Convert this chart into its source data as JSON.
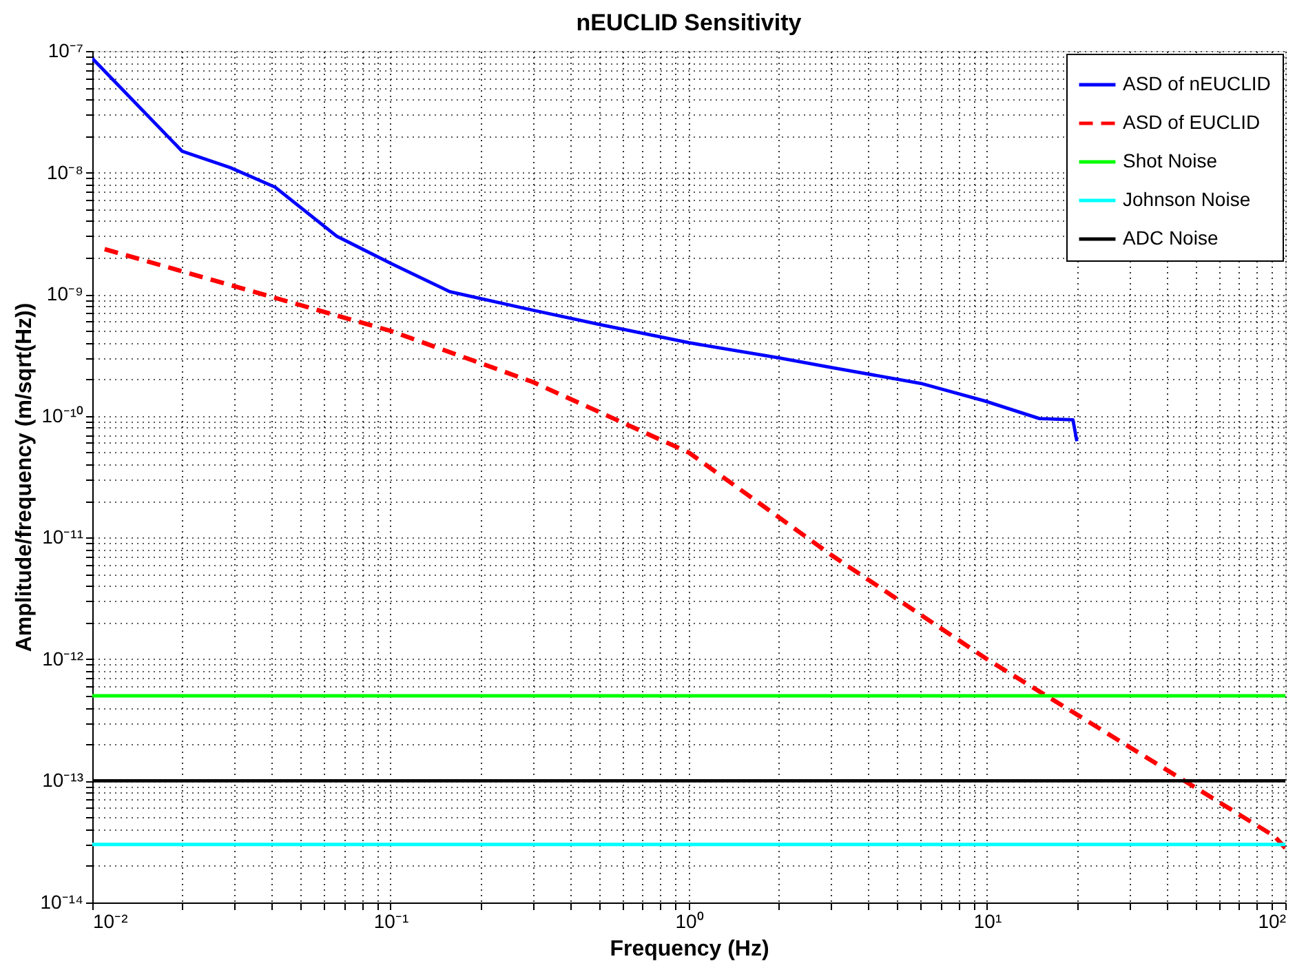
{
  "chart_data": {
    "type": "line",
    "title": "nEUCLID Sensitivity",
    "xlabel": "Frequency (Hz)",
    "ylabel": "Amplitude/frequency (m/sqrt(Hz))",
    "log": "xy",
    "grid": true,
    "legend": "top right",
    "xlim": [
      0.01,
      100
    ],
    "ylim": [
      1e-14,
      1e-07
    ],
    "xticks": [
      {
        "value": 0.01,
        "label": "10⁻²"
      },
      {
        "value": 0.02,
        "label": null
      },
      {
        "value": 0.03,
        "label": null
      },
      {
        "value": 0.04,
        "label": null
      },
      {
        "value": 0.05,
        "label": null
      },
      {
        "value": 0.06,
        "label": null
      },
      {
        "value": 0.07,
        "label": null
      },
      {
        "value": 0.08,
        "label": null
      },
      {
        "value": 0.09,
        "label": null
      },
      {
        "value": 0.1,
        "label": "10⁻¹"
      },
      {
        "value": 0.2,
        "label": null
      },
      {
        "value": 0.3,
        "label": null
      },
      {
        "value": 0.4,
        "label": null
      },
      {
        "value": 0.5,
        "label": null
      },
      {
        "value": 0.6,
        "label": null
      },
      {
        "value": 0.7,
        "label": null
      },
      {
        "value": 0.8,
        "label": null
      },
      {
        "value": 0.9,
        "label": null
      },
      {
        "value": 1,
        "label": "10⁰"
      },
      {
        "value": 2,
        "label": null
      },
      {
        "value": 3,
        "label": null
      },
      {
        "value": 4,
        "label": null
      },
      {
        "value": 5,
        "label": null
      },
      {
        "value": 6,
        "label": null
      },
      {
        "value": 7,
        "label": null
      },
      {
        "value": 8,
        "label": null
      },
      {
        "value": 9,
        "label": null
      },
      {
        "value": 10,
        "label": "10¹"
      },
      {
        "value": 20,
        "label": null
      },
      {
        "value": 30,
        "label": null
      },
      {
        "value": 40,
        "label": null
      },
      {
        "value": 50,
        "label": null
      },
      {
        "value": 60,
        "label": null
      },
      {
        "value": 70,
        "label": null
      },
      {
        "value": 80,
        "label": null
      },
      {
        "value": 90,
        "label": null
      },
      {
        "value": 100,
        "label": "10²"
      }
    ],
    "yticks": [
      {
        "value": 1e-14,
        "label": "10⁻¹⁴"
      },
      {
        "value": 2e-14,
        "label": null
      },
      {
        "value": 3e-14,
        "label": null
      },
      {
        "value": 4e-14,
        "label": null
      },
      {
        "value": 5e-14,
        "label": null
      },
      {
        "value": 6e-14,
        "label": null
      },
      {
        "value": 7e-14,
        "label": null
      },
      {
        "value": 8e-14,
        "label": null
      },
      {
        "value": 9e-14,
        "label": null
      },
      {
        "value": 1e-13,
        "label": "10⁻¹³"
      },
      {
        "value": 2e-13,
        "label": null
      },
      {
        "value": 3e-13,
        "label": null
      },
      {
        "value": 4e-13,
        "label": null
      },
      {
        "value": 5e-13,
        "label": null
      },
      {
        "value": 6e-13,
        "label": null
      },
      {
        "value": 7e-13,
        "label": null
      },
      {
        "value": 8e-13,
        "label": null
      },
      {
        "value": 9e-13,
        "label": null
      },
      {
        "value": 1e-12,
        "label": "10⁻¹²"
      },
      {
        "value": 2e-12,
        "label": null
      },
      {
        "value": 3e-12,
        "label": null
      },
      {
        "value": 4e-12,
        "label": null
      },
      {
        "value": 5e-12,
        "label": null
      },
      {
        "value": 6e-12,
        "label": null
      },
      {
        "value": 7e-12,
        "label": null
      },
      {
        "value": 8e-12,
        "label": null
      },
      {
        "value": 9e-12,
        "label": null
      },
      {
        "value": 1e-11,
        "label": "10⁻¹¹"
      },
      {
        "value": 2e-11,
        "label": null
      },
      {
        "value": 3e-11,
        "label": null
      },
      {
        "value": 4e-11,
        "label": null
      },
      {
        "value": 5e-11,
        "label": null
      },
      {
        "value": 6e-11,
        "label": null
      },
      {
        "value": 7e-11,
        "label": null
      },
      {
        "value": 8e-11,
        "label": null
      },
      {
        "value": 9e-11,
        "label": null
      },
      {
        "value": 1e-10,
        "label": "10⁻¹⁰"
      },
      {
        "value": 2e-10,
        "label": null
      },
      {
        "value": 3e-10,
        "label": null
      },
      {
        "value": 4e-10,
        "label": null
      },
      {
        "value": 5e-10,
        "label": null
      },
      {
        "value": 6e-10,
        "label": null
      },
      {
        "value": 7e-10,
        "label": null
      },
      {
        "value": 8e-10,
        "label": null
      },
      {
        "value": 9e-10,
        "label": null
      },
      {
        "value": 1e-09,
        "label": "10⁻⁹"
      },
      {
        "value": 2e-09,
        "label": null
      },
      {
        "value": 3e-09,
        "label": null
      },
      {
        "value": 4e-09,
        "label": null
      },
      {
        "value": 5e-09,
        "label": null
      },
      {
        "value": 6e-09,
        "label": null
      },
      {
        "value": 7e-09,
        "label": null
      },
      {
        "value": 8e-09,
        "label": null
      },
      {
        "value": 9e-09,
        "label": null
      },
      {
        "value": 1e-08,
        "label": "10⁻⁸"
      },
      {
        "value": 2e-08,
        "label": null
      },
      {
        "value": 3e-08,
        "label": null
      },
      {
        "value": 4e-08,
        "label": null
      },
      {
        "value": 5e-08,
        "label": null
      },
      {
        "value": 6e-08,
        "label": null
      },
      {
        "value": 7e-08,
        "label": null
      },
      {
        "value": 8e-08,
        "label": null
      },
      {
        "value": 9e-08,
        "label": null
      },
      {
        "value": 1e-07,
        "label": "10⁻⁷"
      }
    ],
    "series": [
      {
        "name": "ASD of nEUCLID",
        "color": "#0000ff",
        "line_style": "solid",
        "x": [
          0.01,
          0.02,
          0.029,
          0.041,
          0.066,
          0.1,
          0.158,
          0.3,
          0.51,
          1,
          2,
          3,
          6,
          9.8,
          15,
          19.4,
          20
        ],
        "values": [
          8.7e-08,
          1.5e-08,
          1.1e-08,
          7.6e-09,
          3e-09,
          1.8e-09,
          1.05e-09,
          7.4e-10,
          5.6e-10,
          4e-10,
          3e-10,
          2.5e-10,
          1.85e-10,
          1.33e-10,
          9.5e-11,
          9.3e-11,
          6.2e-11
        ]
      },
      {
        "name": "ASD of EUCLID",
        "color": "#ff0000",
        "line_style": "dashed",
        "x": [
          0.011,
          0.1,
          0.3,
          1,
          3,
          10,
          30,
          92,
          100
        ],
        "values": [
          2.35e-09,
          5e-10,
          1.9e-10,
          5e-11,
          7.2e-12,
          1e-12,
          1.9e-13,
          3.5e-14,
          2.8e-14
        ]
      },
      {
        "name": "Shot Noise",
        "color": "#00ff00",
        "line_style": "solid",
        "x": [
          0.01,
          100
        ],
        "values": [
          5e-13,
          5e-13
        ]
      },
      {
        "name": "Johnson Noise",
        "color": "#00ffff",
        "line_style": "solid",
        "x": [
          0.01,
          100
        ],
        "values": [
          3e-14,
          3e-14
        ]
      },
      {
        "name": "ADC Noise",
        "color": "#000000",
        "line_style": "solid",
        "x": [
          0.01,
          100
        ],
        "values": [
          1e-13,
          1e-13
        ]
      }
    ]
  }
}
